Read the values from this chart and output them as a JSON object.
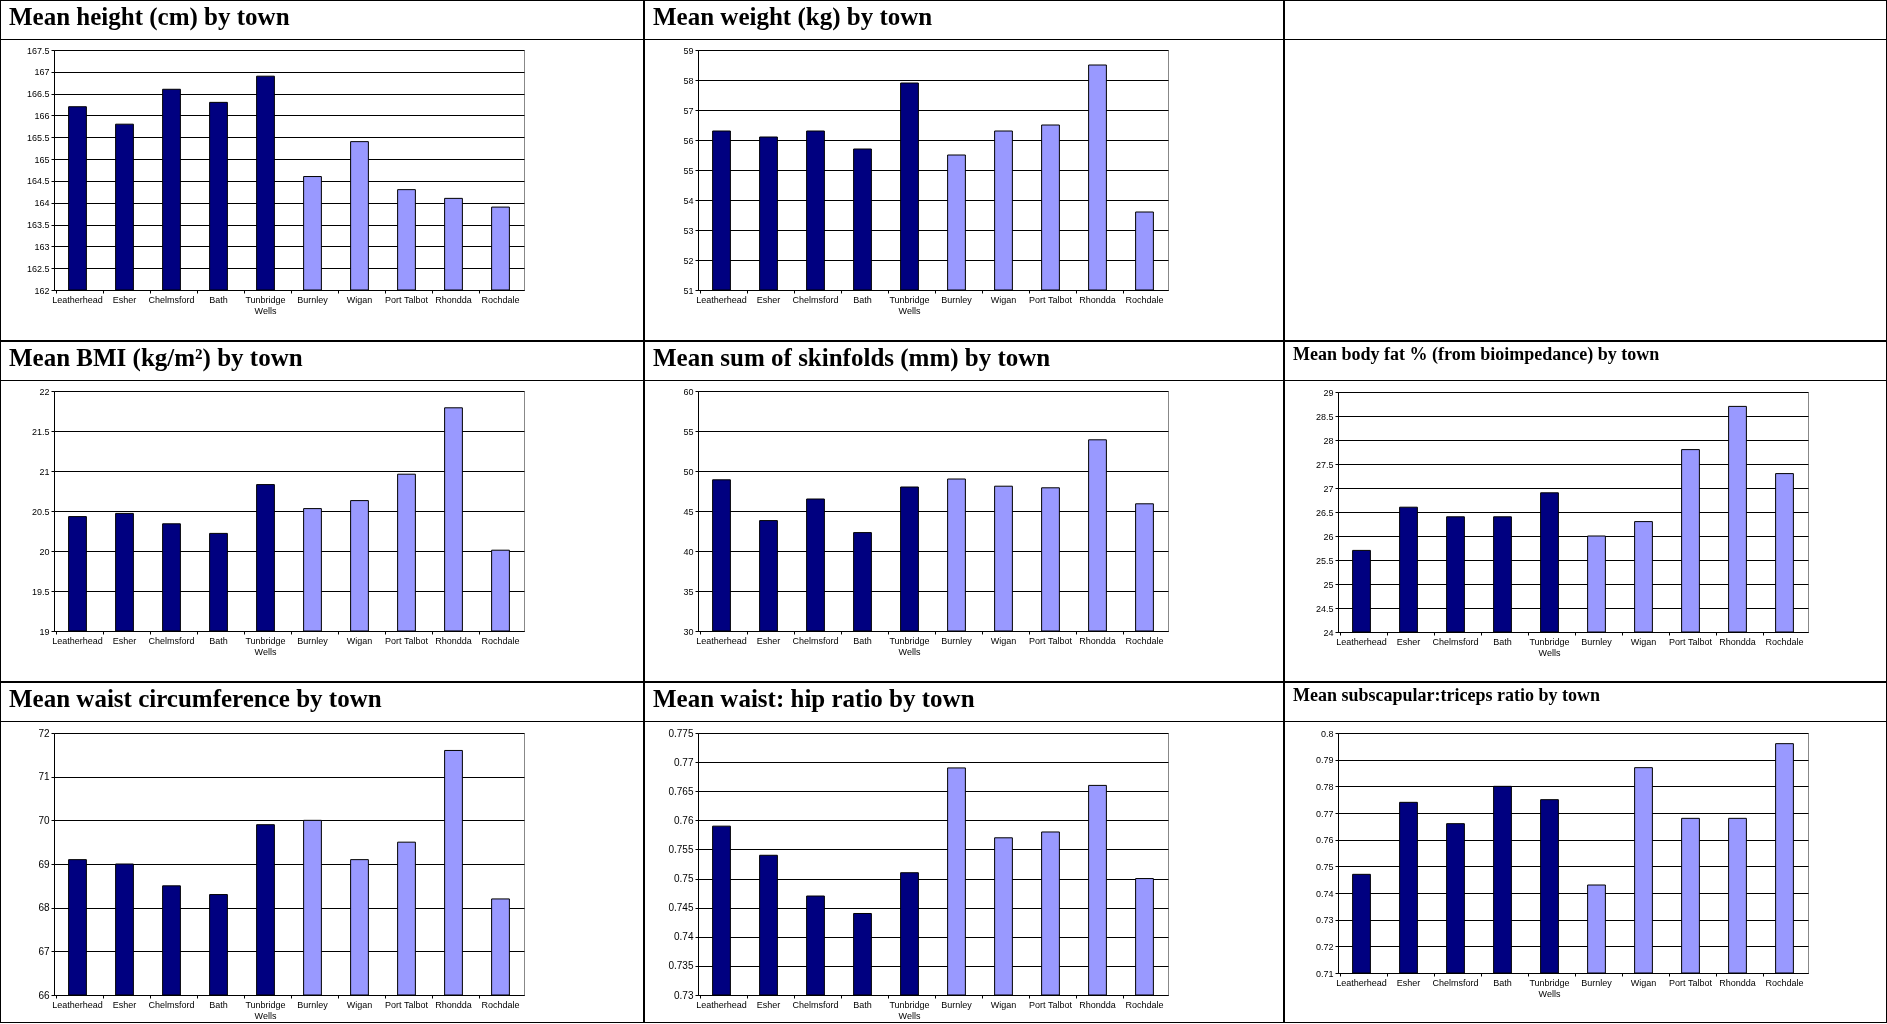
{
  "chart_data": [
    {
      "type": "bar",
      "title": "Mean height (cm) by town",
      "categories": [
        "Leatherhead",
        "Esher",
        "Chelmsford",
        "Bath",
        "Tunbridge Wells",
        "Burnley",
        "Wigan",
        "Port Talbot",
        "Rhondda",
        "Rochdale"
      ],
      "values": [
        166.2,
        165.8,
        166.6,
        166.3,
        166.9,
        164.6,
        165.4,
        164.3,
        164.1,
        163.9
      ],
      "colors": [
        "#000080",
        "#000080",
        "#000080",
        "#000080",
        "#000080",
        "#9999ff",
        "#9999ff",
        "#9999ff",
        "#9999ff",
        "#9999ff"
      ],
      "ylim": [
        162,
        167.5
      ],
      "yticks": [
        162,
        162.5,
        163,
        163.5,
        164,
        164.5,
        165,
        165.5,
        166,
        166.5,
        167,
        167.5
      ],
      "grid": "y"
    },
    {
      "type": "bar",
      "title": "Mean weight (kg) by town",
      "categories": [
        "Leatherhead",
        "Esher",
        "Chelmsford",
        "Bath",
        "Tunbridge Wells",
        "Burnley",
        "Wigan",
        "Port Talbot",
        "Rhondda",
        "Rochdale"
      ],
      "values": [
        56.3,
        56.1,
        56.3,
        55.7,
        57.9,
        55.5,
        56.3,
        56.5,
        58.5,
        53.6
      ],
      "colors": [
        "#000080",
        "#000080",
        "#000080",
        "#000080",
        "#000080",
        "#9999ff",
        "#9999ff",
        "#9999ff",
        "#9999ff",
        "#9999ff"
      ],
      "ylim": [
        51,
        59
      ],
      "yticks": [
        51,
        52,
        53,
        54,
        55,
        56,
        57,
        58,
        59
      ],
      "grid": "y"
    },
    {
      "type": "bar",
      "title": "Mean BMI (kg/m²) by town",
      "categories": [
        "Leatherhead",
        "Esher",
        "Chelmsford",
        "Bath",
        "Tunbridge Wells",
        "Burnley",
        "Wigan",
        "Port Talbot",
        "Rhondda",
        "Rochdale"
      ],
      "values": [
        20.43,
        20.47,
        20.34,
        20.22,
        20.83,
        20.53,
        20.63,
        20.96,
        21.79,
        20.01
      ],
      "colors": [
        "#000080",
        "#000080",
        "#000080",
        "#000080",
        "#000080",
        "#9999ff",
        "#9999ff",
        "#9999ff",
        "#9999ff",
        "#9999ff"
      ],
      "ylim": [
        19,
        22
      ],
      "yticks": [
        19,
        19.5,
        20,
        20.5,
        21,
        21.5,
        22
      ],
      "grid": "y"
    },
    {
      "type": "bar",
      "title": "Mean sum of skinfolds (mm) by town",
      "categories": [
        "Leatherhead",
        "Esher",
        "Chelmsford",
        "Bath",
        "Tunbridge Wells",
        "Burnley",
        "Wigan",
        "Port Talbot",
        "Rhondda",
        "Rochdale"
      ],
      "values": [
        48.9,
        43.8,
        46.5,
        42.3,
        48.0,
        49.0,
        48.1,
        47.9,
        53.9,
        45.9
      ],
      "colors": [
        "#000080",
        "#000080",
        "#000080",
        "#000080",
        "#000080",
        "#9999ff",
        "#9999ff",
        "#9999ff",
        "#9999ff",
        "#9999ff"
      ],
      "ylim": [
        30,
        60
      ],
      "yticks": [
        30,
        35,
        40,
        45,
        50,
        55,
        60
      ],
      "grid": "y"
    },
    {
      "type": "bar",
      "title": "Mean body fat % (from bioimpedance) by town",
      "categories": [
        "Leatherhead",
        "Esher",
        "Chelmsford",
        "Bath",
        "Tunbridge Wells",
        "Burnley",
        "Wigan",
        "Port Talbot",
        "Rhondda",
        "Rochdale"
      ],
      "values": [
        25.7,
        26.6,
        26.4,
        26.4,
        26.9,
        26.0,
        26.3,
        27.8,
        28.7,
        27.3
      ],
      "colors": [
        "#000080",
        "#000080",
        "#000080",
        "#000080",
        "#000080",
        "#9999ff",
        "#9999ff",
        "#9999ff",
        "#9999ff",
        "#9999ff"
      ],
      "ylim": [
        24,
        29
      ],
      "yticks": [
        24,
        24.5,
        25,
        25.5,
        26,
        26.5,
        27,
        27.5,
        28,
        28.5,
        29
      ],
      "grid": "y"
    },
    {
      "type": "bar",
      "title": "Mean waist circumference by town",
      "categories": [
        "Leatherhead",
        "Esher",
        "Chelmsford",
        "Bath",
        "Tunbridge Wells",
        "Burnley",
        "Wigan",
        "Port Talbot",
        "Rhondda",
        "Rochdale"
      ],
      "values": [
        69.1,
        69.0,
        68.5,
        68.3,
        69.9,
        70.0,
        69.1,
        69.5,
        71.6,
        68.2
      ],
      "colors": [
        "#000080",
        "#000080",
        "#000080",
        "#000080",
        "#000080",
        "#9999ff",
        "#9999ff",
        "#9999ff",
        "#9999ff",
        "#9999ff"
      ],
      "ylim": [
        66,
        72
      ],
      "yticks": [
        66,
        67,
        68,
        69,
        70,
        71,
        72
      ],
      "grid": "y"
    },
    {
      "type": "bar",
      "title": "Mean waist: hip ratio by town",
      "categories": [
        "Leatherhead",
        "Esher",
        "Chelmsford",
        "Bath",
        "Tunbridge Wells",
        "Burnley",
        "Wigan",
        "Port Talbot",
        "Rhondda",
        "Rochdale"
      ],
      "values": [
        0.759,
        0.754,
        0.747,
        0.744,
        0.751,
        0.769,
        0.757,
        0.758,
        0.766,
        0.75
      ],
      "colors": [
        "#000080",
        "#000080",
        "#000080",
        "#000080",
        "#000080",
        "#9999ff",
        "#9999ff",
        "#9999ff",
        "#9999ff",
        "#9999ff"
      ],
      "ylim": [
        0.73,
        0.775
      ],
      "yticks": [
        0.73,
        0.735,
        0.74,
        0.745,
        0.75,
        0.755,
        0.76,
        0.765,
        0.77,
        0.775
      ],
      "grid": "y"
    },
    {
      "type": "bar",
      "title": "Mean subscapular:triceps ratio by town",
      "categories": [
        "Leatherhead",
        "Esher",
        "Chelmsford",
        "Bath",
        "Tunbridge Wells",
        "Burnley",
        "Wigan",
        "Port Talbot",
        "Rhondda",
        "Rochdale"
      ],
      "values": [
        0.747,
        0.774,
        0.766,
        0.78,
        0.775,
        0.743,
        0.787,
        0.768,
        0.768,
        0.796
      ],
      "colors": [
        "#000080",
        "#000080",
        "#000080",
        "#000080",
        "#000080",
        "#9999ff",
        "#9999ff",
        "#9999ff",
        "#9999ff",
        "#9999ff"
      ],
      "ylim": [
        0.71,
        0.8
      ],
      "yticks": [
        0.71,
        0.72,
        0.73,
        0.74,
        0.75,
        0.76,
        0.77,
        0.78,
        0.79,
        0.8
      ],
      "grid": "y"
    }
  ]
}
